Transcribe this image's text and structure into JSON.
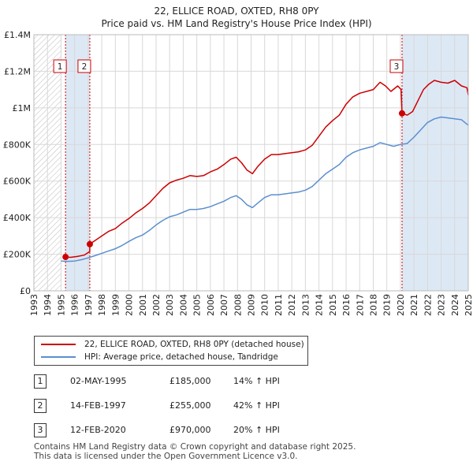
{
  "title_line1": "22, ELLICE ROAD, OXTED, RH8 0PY",
  "title_line2": "Price paid vs. HM Land Registry's House Price Index (HPI)",
  "legend": {
    "property_label": "22, ELLICE ROAD, OXTED, RH8 0PY (detached house)",
    "hpi_label": "HPI: Average price, detached house, Tandridge"
  },
  "colors": {
    "property": "#cc0000",
    "hpi": "#5b8fce",
    "shade": "#dde8f5",
    "grid": "#d8d8d8"
  },
  "transactions": [
    {
      "num": "1",
      "date": "02-MAY-1995",
      "price": "£185,000",
      "hpi": "14% ↑ HPI"
    },
    {
      "num": "2",
      "date": "14-FEB-1997",
      "price": "£255,000",
      "hpi": "42% ↑ HPI"
    },
    {
      "num": "3",
      "date": "12-FEB-2020",
      "price": "£970,000",
      "hpi": "20% ↑ HPI"
    }
  ],
  "footer": {
    "line1": "Contains HM Land Registry data © Crown copyright and database right 2025.",
    "line2": "This data is licensed under the Open Government Licence v3.0."
  },
  "chart_data": {
    "type": "line",
    "title": "Price paid vs. HM Land Registry's House Price Index (HPI)",
    "xlabel": "",
    "ylabel": "",
    "xlim": [
      1993,
      2025
    ],
    "ylim": [
      0,
      1400000
    ],
    "y_ticks": [
      0,
      200000,
      400000,
      600000,
      800000,
      1000000,
      1200000,
      1400000
    ],
    "y_tick_labels": [
      "£0",
      "£200K",
      "£400K",
      "£600K",
      "£800K",
      "£1M",
      "£1.2M",
      "£1.4M"
    ],
    "x_ticks": [
      1993,
      1994,
      1995,
      1996,
      1997,
      1998,
      1999,
      2000,
      2001,
      2002,
      2003,
      2004,
      2005,
      2006,
      2007,
      2008,
      2009,
      2010,
      2011,
      2012,
      2013,
      2014,
      2015,
      2016,
      2017,
      2018,
      2019,
      2020,
      2021,
      2022,
      2023,
      2024,
      2025
    ],
    "x_tick_labels": [
      "1993",
      "1994",
      "1995",
      "1996",
      "1997",
      "1998",
      "1999",
      "2000",
      "2001",
      "2002",
      "2003",
      "2004",
      "2005",
      "2006",
      "2007",
      "2008",
      "2009",
      "2010",
      "2011",
      "2012",
      "2013",
      "2014",
      "2015",
      "2016",
      "2017",
      "2018",
      "2019",
      "2020",
      "2021",
      "2022",
      "2023",
      "2024",
      "2025"
    ],
    "hatched_before": 1995,
    "series": [
      {
        "name": "22, ELLICE ROAD, OXTED, RH8 0PY (detached house)",
        "color": "#cc0000",
        "points": [
          [
            1995.33,
            185000
          ],
          [
            1995.7,
            183000
          ],
          [
            1996.2,
            188000
          ],
          [
            1996.7,
            195000
          ],
          [
            1997.12,
            215000
          ],
          [
            1997.12,
            255000
          ],
          [
            1997.5,
            275000
          ],
          [
            1998,
            300000
          ],
          [
            1998.5,
            325000
          ],
          [
            1999,
            340000
          ],
          [
            1999.5,
            370000
          ],
          [
            2000,
            395000
          ],
          [
            2000.5,
            425000
          ],
          [
            2001,
            450000
          ],
          [
            2001.5,
            480000
          ],
          [
            2002,
            520000
          ],
          [
            2002.5,
            560000
          ],
          [
            2003,
            590000
          ],
          [
            2003.5,
            605000
          ],
          [
            2004,
            615000
          ],
          [
            2004.5,
            630000
          ],
          [
            2005,
            625000
          ],
          [
            2005.5,
            630000
          ],
          [
            2006,
            650000
          ],
          [
            2006.5,
            665000
          ],
          [
            2007,
            690000
          ],
          [
            2007.5,
            720000
          ],
          [
            2007.9,
            730000
          ],
          [
            2008.3,
            700000
          ],
          [
            2008.7,
            660000
          ],
          [
            2009.1,
            640000
          ],
          [
            2009.5,
            680000
          ],
          [
            2010,
            720000
          ],
          [
            2010.5,
            745000
          ],
          [
            2011,
            745000
          ],
          [
            2011.5,
            750000
          ],
          [
            2012,
            755000
          ],
          [
            2012.5,
            760000
          ],
          [
            2013,
            770000
          ],
          [
            2013.5,
            795000
          ],
          [
            2014,
            845000
          ],
          [
            2014.5,
            895000
          ],
          [
            2015,
            930000
          ],
          [
            2015.5,
            960000
          ],
          [
            2016,
            1020000
          ],
          [
            2016.5,
            1060000
          ],
          [
            2017,
            1080000
          ],
          [
            2017.5,
            1090000
          ],
          [
            2018,
            1100000
          ],
          [
            2018.5,
            1140000
          ],
          [
            2018.9,
            1120000
          ],
          [
            2019.3,
            1090000
          ],
          [
            2019.8,
            1120000
          ],
          [
            2020.05,
            1100000
          ],
          [
            2020.12,
            970000
          ],
          [
            2020.5,
            960000
          ],
          [
            2020.9,
            980000
          ],
          [
            2021.3,
            1040000
          ],
          [
            2021.7,
            1100000
          ],
          [
            2022.1,
            1130000
          ],
          [
            2022.5,
            1150000
          ],
          [
            2023,
            1140000
          ],
          [
            2023.5,
            1135000
          ],
          [
            2024,
            1150000
          ],
          [
            2024.5,
            1120000
          ],
          [
            2024.9,
            1110000
          ],
          [
            2025,
            1070000
          ]
        ]
      },
      {
        "name": "HPI: Average price, detached house, Tandridge",
        "color": "#5b8fce",
        "points": [
          [
            1995,
            163000
          ],
          [
            1995.5,
            161000
          ],
          [
            1996,
            163000
          ],
          [
            1996.5,
            170000
          ],
          [
            1997,
            180000
          ],
          [
            1997.5,
            192000
          ],
          [
            1998,
            205000
          ],
          [
            1998.5,
            218000
          ],
          [
            1999,
            230000
          ],
          [
            1999.5,
            248000
          ],
          [
            2000,
            270000
          ],
          [
            2000.5,
            290000
          ],
          [
            2001,
            305000
          ],
          [
            2001.5,
            330000
          ],
          [
            2002,
            360000
          ],
          [
            2002.5,
            385000
          ],
          [
            2003,
            405000
          ],
          [
            2003.5,
            415000
          ],
          [
            2004,
            430000
          ],
          [
            2004.5,
            445000
          ],
          [
            2005,
            445000
          ],
          [
            2005.5,
            450000
          ],
          [
            2006,
            460000
          ],
          [
            2006.5,
            475000
          ],
          [
            2007,
            490000
          ],
          [
            2007.5,
            510000
          ],
          [
            2007.9,
            520000
          ],
          [
            2008.3,
            500000
          ],
          [
            2008.7,
            470000
          ],
          [
            2009.1,
            455000
          ],
          [
            2009.5,
            480000
          ],
          [
            2010,
            510000
          ],
          [
            2010.5,
            525000
          ],
          [
            2011,
            525000
          ],
          [
            2011.5,
            530000
          ],
          [
            2012,
            535000
          ],
          [
            2012.5,
            540000
          ],
          [
            2013,
            550000
          ],
          [
            2013.5,
            570000
          ],
          [
            2014,
            605000
          ],
          [
            2014.5,
            640000
          ],
          [
            2015,
            665000
          ],
          [
            2015.5,
            690000
          ],
          [
            2016,
            730000
          ],
          [
            2016.5,
            755000
          ],
          [
            2017,
            770000
          ],
          [
            2017.5,
            780000
          ],
          [
            2018,
            790000
          ],
          [
            2018.5,
            810000
          ],
          [
            2019,
            800000
          ],
          [
            2019.5,
            790000
          ],
          [
            2020,
            800000
          ],
          [
            2020.5,
            805000
          ],
          [
            2021,
            840000
          ],
          [
            2021.5,
            880000
          ],
          [
            2022,
            920000
          ],
          [
            2022.5,
            940000
          ],
          [
            2023,
            950000
          ],
          [
            2023.5,
            945000
          ],
          [
            2024,
            940000
          ],
          [
            2024.5,
            935000
          ],
          [
            2025,
            905000
          ]
        ]
      }
    ],
    "markers": [
      {
        "label": "1",
        "x": 1995.33,
        "y": 185000
      },
      {
        "label": "2",
        "x": 1997.12,
        "y": 255000
      },
      {
        "label": "3",
        "x": 2020.12,
        "y": 970000
      }
    ],
    "annotations": [
      {
        "label": "1",
        "x": 1995.33
      },
      {
        "label": "2",
        "x": 1997.12
      },
      {
        "label": "3",
        "x": 2020.12
      }
    ]
  }
}
